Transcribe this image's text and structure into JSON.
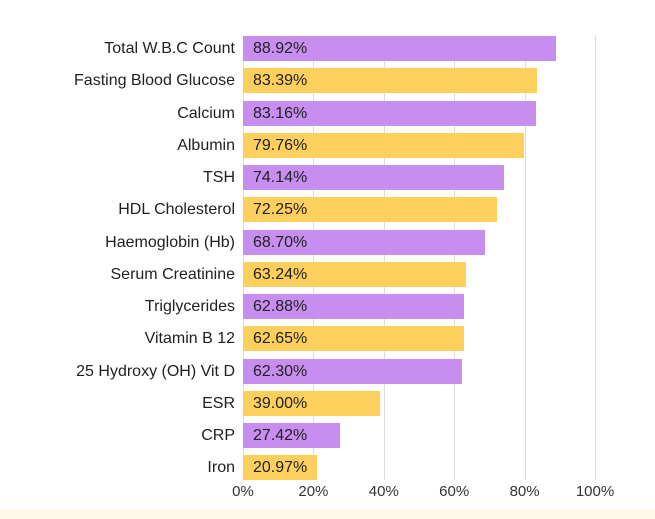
{
  "page": {
    "background": "#ffffff",
    "bottom_strip_color": "#fdf9e8"
  },
  "chart_data": {
    "type": "bar",
    "orientation": "horizontal",
    "title": "",
    "xlabel": "",
    "ylabel": "",
    "categories": [
      "Total W.B.C Count",
      "Fasting Blood Glucose",
      "Calcium",
      "Albumin",
      "TSH",
      "HDL Cholesterol",
      "Haemoglobin (Hb)",
      "Serum Creatinine",
      "Triglycerides",
      "Vitamin B 12",
      "25 Hydroxy (OH) Vit D",
      "ESR",
      "CRP",
      "Iron"
    ],
    "values": [
      88.92,
      83.39,
      83.16,
      79.76,
      74.14,
      72.25,
      68.7,
      63.24,
      62.88,
      62.65,
      62.3,
      39.0,
      27.42,
      20.97
    ],
    "value_labels": [
      "88.92%",
      "83.39%",
      "83.16%",
      "79.76%",
      "74.14%",
      "72.25%",
      "68.70%",
      "63.24%",
      "62.88%",
      "62.65%",
      "62.30%",
      "39.00%",
      "27.42%",
      "20.97%"
    ],
    "xlim": [
      0,
      100
    ],
    "x_ticks": [
      {
        "value": 0,
        "label": "0%"
      },
      {
        "value": 20,
        "label": "20%"
      },
      {
        "value": 40,
        "label": "40%"
      },
      {
        "value": 60,
        "label": "60%"
      },
      {
        "value": 80,
        "label": "80%"
      },
      {
        "value": 100,
        "label": "100%"
      }
    ],
    "grid": "vertical",
    "legend_position": "none",
    "bar_color_pattern": [
      "#c78ef0",
      "#fdd05e"
    ],
    "gridline_color": "#dcdcdc",
    "label_color": "#212121",
    "value_color": "#212121",
    "tick_color": "#333333"
  }
}
